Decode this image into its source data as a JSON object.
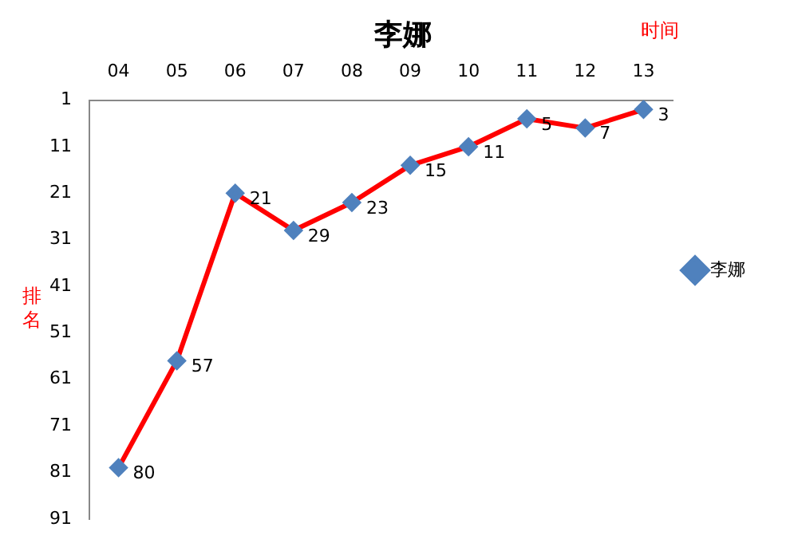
{
  "chart_data": {
    "type": "line",
    "title": "李娜",
    "xlabel": "时间",
    "ylabel": "排名",
    "categories": [
      "04",
      "05",
      "06",
      "07",
      "08",
      "09",
      "10",
      "11",
      "12",
      "13"
    ],
    "series": [
      {
        "name": "李娜",
        "color": "#ff0000",
        "values": [
          80,
          57,
          21,
          29,
          23,
          15,
          11,
          5,
          7,
          3
        ]
      }
    ],
    "ylim": [
      91,
      1
    ],
    "yticks": [
      1,
      11,
      21,
      31,
      41,
      51,
      61,
      71,
      81,
      91
    ],
    "grid": false,
    "legend": "right",
    "marker": "diamond",
    "line_style": "solid",
    "data_labels": true
  }
}
